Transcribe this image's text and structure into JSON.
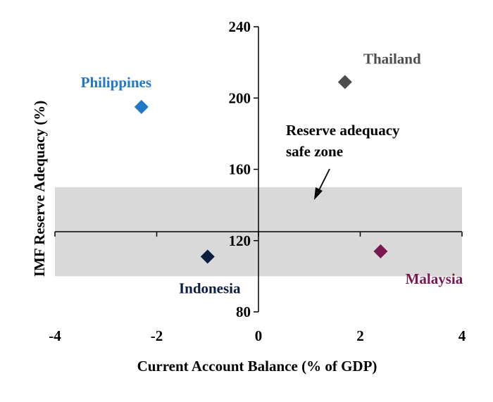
{
  "chart_data": {
    "type": "scatter",
    "xlabel": "Current Account Balance (% of GDP)",
    "ylabel": "IMF Reserve Adequacy (%)",
    "xlim": [
      -4,
      4
    ],
    "ylim": [
      80,
      240
    ],
    "xticks": [
      "-4",
      "-2",
      "0",
      "2",
      "4"
    ],
    "yticks": [
      "80",
      "120",
      "160",
      "200",
      "240"
    ],
    "safe_zone": {
      "label_line1": "Reserve adequacy",
      "label_line2": "safe zone",
      "y_from": 100,
      "y_to": 150,
      "color": "#d9d9d9"
    },
    "points": [
      {
        "name": "Philippines",
        "x": -2.3,
        "y": 195,
        "color": "#1f78c8"
      },
      {
        "name": "Thailand",
        "x": 1.7,
        "y": 209,
        "color": "#4d4d4d"
      },
      {
        "name": "Indonesia",
        "x": -1.0,
        "y": 111,
        "color": "#0b1e3f"
      },
      {
        "name": "Malaysia",
        "x": 2.4,
        "y": 114,
        "color": "#7a1650"
      }
    ]
  }
}
